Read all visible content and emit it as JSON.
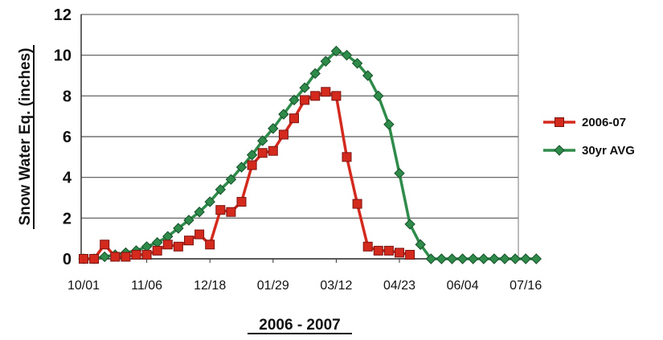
{
  "chart_data": {
    "type": "line",
    "title": "",
    "xlabel": "2006 - 2007",
    "ylabel": "Snow Water Eq. (inches)",
    "ylim": [
      0,
      12
    ],
    "yticks": [
      0,
      2,
      4,
      6,
      8,
      10,
      12
    ],
    "xtick_labels": [
      "10/01",
      "11/06",
      "12/18",
      "01/29",
      "03/12",
      "04/23",
      "06/04",
      "07/16"
    ],
    "grid": "horizontal",
    "legend_position": "right",
    "series": [
      {
        "name": "2006-07",
        "color": "#d42a1e",
        "marker": "square",
        "values": [
          0,
          0,
          0.7,
          0.1,
          0.1,
          0.2,
          0.2,
          0.4,
          0.7,
          0.6,
          0.9,
          1.2,
          0.7,
          2.4,
          2.3,
          2.8,
          4.6,
          5.2,
          5.3,
          6.1,
          6.9,
          7.8,
          8.0,
          8.2,
          8.0,
          5.0,
          2.7,
          0.6,
          0.4,
          0.4,
          0.3,
          0.2
        ]
      },
      {
        "name": "30yr AVG",
        "color": "#2e8b4a",
        "marker": "diamond",
        "values": [
          0,
          0,
          0.1,
          0.2,
          0.3,
          0.4,
          0.6,
          0.8,
          1.1,
          1.5,
          1.9,
          2.3,
          2.8,
          3.4,
          3.9,
          4.5,
          5.1,
          5.8,
          6.4,
          7.1,
          7.8,
          8.4,
          9.1,
          9.7,
          10.2,
          10.0,
          9.6,
          9.0,
          8.0,
          6.6,
          4.2,
          1.7,
          0.7,
          0,
          0,
          0,
          0,
          0,
          0,
          0,
          0,
          0,
          0,
          0
        ]
      }
    ]
  }
}
